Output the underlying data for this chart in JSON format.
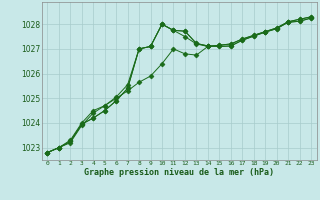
{
  "title": "Graphe pression niveau de la mer (hPa)",
  "bg_color": "#c8e8e8",
  "plot_bg_color": "#c8e8e8",
  "line_color": "#1a6b1a",
  "grid_color": "#a8cccc",
  "text_color": "#1a5c1a",
  "xlim": [
    -0.5,
    23.5
  ],
  "ylim": [
    1022.5,
    1028.9
  ],
  "yticks": [
    1023,
    1024,
    1025,
    1026,
    1027,
    1028
  ],
  "xticks": [
    0,
    1,
    2,
    3,
    4,
    5,
    6,
    7,
    8,
    9,
    10,
    11,
    12,
    13,
    14,
    15,
    16,
    17,
    18,
    19,
    20,
    21,
    22,
    23
  ],
  "series1": [
    1022.8,
    1023.0,
    1023.2,
    1023.9,
    1024.4,
    1024.7,
    1025.0,
    1025.3,
    1025.65,
    1025.9,
    1026.4,
    1027.0,
    1026.8,
    1026.75,
    1027.1,
    1027.15,
    1027.2,
    1027.4,
    1027.55,
    1027.7,
    1027.85,
    1028.1,
    1028.2,
    1028.3
  ],
  "series2": [
    1022.8,
    1023.0,
    1023.25,
    1023.95,
    1024.2,
    1024.5,
    1024.9,
    1025.4,
    1027.0,
    1027.1,
    1028.0,
    1027.75,
    1027.72,
    1027.22,
    1027.12,
    1027.1,
    1027.12,
    1027.35,
    1027.52,
    1027.68,
    1027.82,
    1028.08,
    1028.12,
    1028.25
  ],
  "series3": [
    1022.8,
    1023.0,
    1023.25,
    1023.95,
    1024.2,
    1024.5,
    1024.9,
    1025.4,
    1027.0,
    1027.1,
    1028.0,
    1027.75,
    1027.72,
    1027.22,
    1027.12,
    1027.1,
    1027.12,
    1027.35,
    1027.52,
    1027.68,
    1027.82,
    1028.08,
    1028.12,
    1028.25
  ],
  "series4": [
    1022.8,
    1023.0,
    1023.3,
    1024.0,
    1024.5,
    1024.7,
    1025.05,
    1025.55,
    1027.0,
    1027.1,
    1028.0,
    1027.75,
    1027.5,
    1027.2,
    1027.1,
    1027.15,
    1027.2,
    1027.4,
    1027.55,
    1027.7,
    1027.85,
    1028.1,
    1028.2,
    1028.3
  ]
}
